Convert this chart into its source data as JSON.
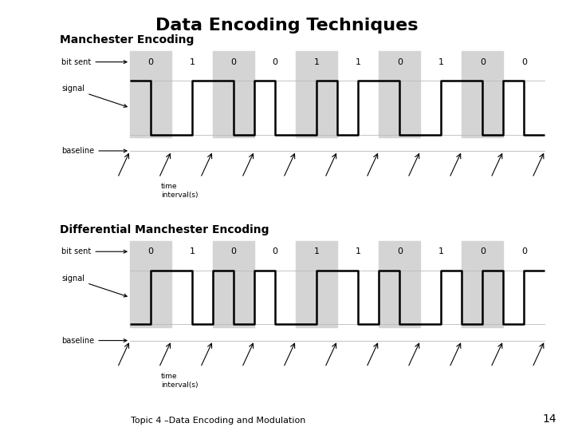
{
  "title": "Data Encoding Techniques",
  "title_fontsize": 16,
  "subtitle1": "Manchester Encoding",
  "subtitle2": "Differential Manchester Encoding",
  "footer": "Topic 4 –Data Encoding and Modulation",
  "footer_page": "14",
  "bits": [
    0,
    1,
    0,
    0,
    1,
    1,
    0,
    1,
    0,
    0
  ],
  "shade_indices": [
    0,
    2,
    4,
    6,
    8
  ],
  "background_color": "#ffffff",
  "shade_color": "#d4d4d4",
  "signal_lw": 1.8
}
